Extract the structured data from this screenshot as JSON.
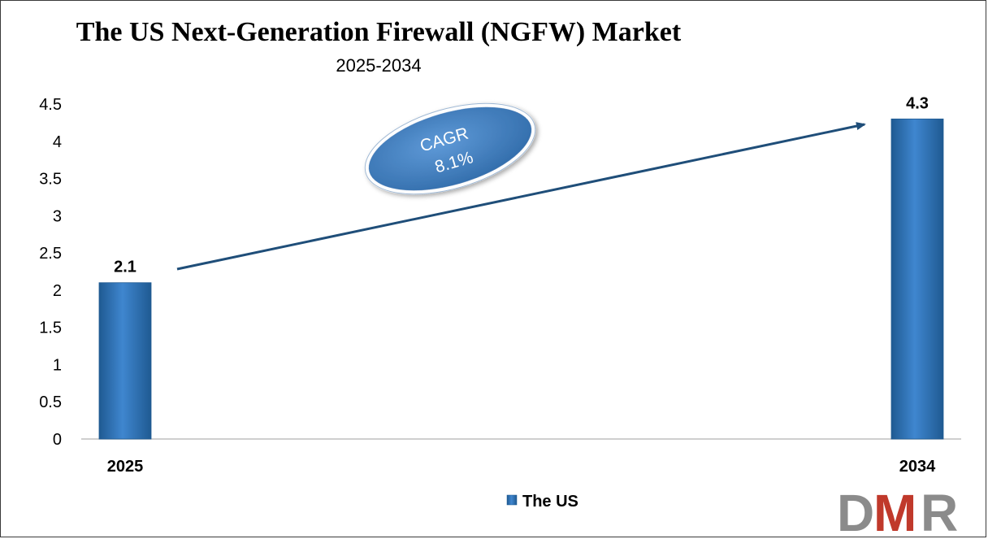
{
  "chart_data": {
    "type": "bar",
    "title": "The US Next-Generation Firewall (NGFW) Market",
    "subtitle": "2025-2034",
    "categories": [
      "2025",
      "2034"
    ],
    "series": [
      {
        "name": "The US",
        "values": [
          2.1,
          4.3
        ]
      }
    ],
    "data_labels": [
      "2.1",
      "4.3"
    ],
    "y_ticks": [
      "0",
      "0.5",
      "1",
      "1.5",
      "2",
      "2.5",
      "3",
      "3.5",
      "4",
      "4.5"
    ],
    "ylim": [
      0,
      4.5
    ],
    "xlabel": "",
    "ylabel": "",
    "grid": false,
    "legend_position": "bottom",
    "annotation": {
      "line1": "CAGR",
      "line2": "8.1%"
    }
  },
  "logo": {
    "text": "DMR"
  },
  "colors": {
    "bar": "#2e75b6",
    "bar_dark": "#1f5a92",
    "bar_light": "#4d8fd0",
    "arrow": "#1f4e79",
    "ellipse_fill": "#3f7fc4",
    "ellipse_border": "#ffffff",
    "logo_d": "#8b8b8b",
    "logo_m": "#c0392b",
    "logo_r": "#8b8b8b"
  }
}
